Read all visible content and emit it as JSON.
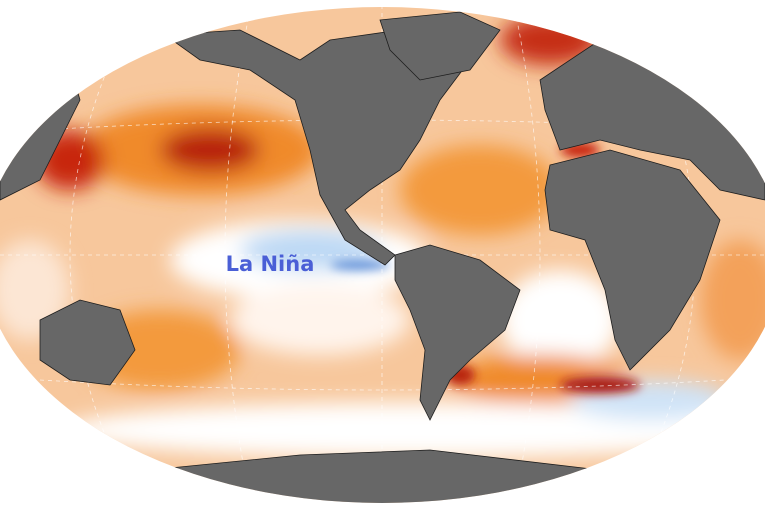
{
  "map": {
    "label": "La Niña"
  }
}
